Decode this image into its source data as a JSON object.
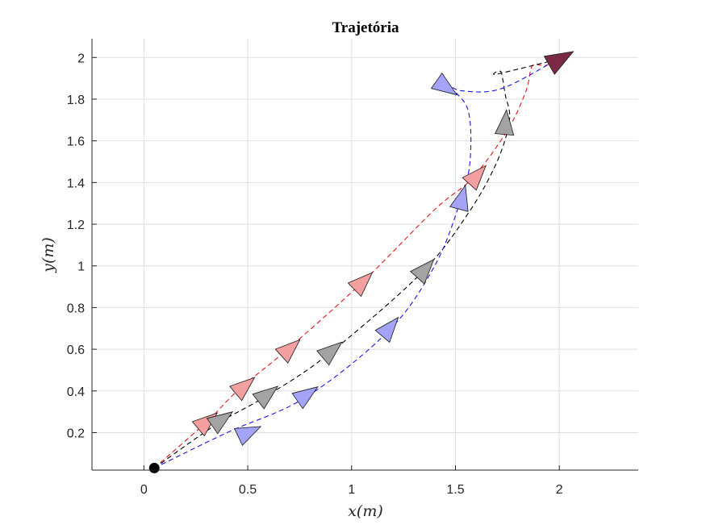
{
  "chart_data": {
    "type": "line",
    "title": "Trajetória",
    "xlabel": "x(m)",
    "ylabel": "y(m)",
    "xlim": [
      -0.25,
      2.38
    ],
    "ylim": [
      0.02,
      2.09
    ],
    "xticks": [
      0,
      0.5,
      1,
      1.5,
      2
    ],
    "xtick_labels": [
      "0",
      "0.5",
      "1",
      "1.5",
      "2"
    ],
    "yticks": [
      0.2,
      0.4,
      0.6,
      0.8,
      1,
      1.2,
      1.4,
      1.6,
      1.8,
      2
    ],
    "ytick_labels": [
      "0.2",
      "0.4",
      "0.6",
      "0.8",
      "1",
      "1.2",
      "1.4",
      "1.6",
      "1.8",
      "2"
    ],
    "grid": true,
    "start_point": {
      "x": 0.05,
      "y": 0.03,
      "color": "#000000"
    },
    "goal_marker": {
      "x": 2.0,
      "y": 1.99,
      "heading_deg": 30,
      "color": "#7a2a47"
    },
    "series": [
      {
        "color": "#e8141f",
        "marker_fill": "#f4a0a0",
        "x": [
          0.05,
          0.3,
          0.46,
          0.68,
          1.05,
          1.4,
          1.58,
          1.75,
          1.84,
          1.87,
          1.93,
          1.99
        ],
        "y": [
          0.03,
          0.25,
          0.41,
          0.59,
          0.92,
          1.27,
          1.42,
          1.65,
          1.84,
          1.96,
          1.96,
          1.99
        ],
        "markers": [
          {
            "x": 0.3,
            "y": 0.25,
            "heading_deg": 40
          },
          {
            "x": 0.48,
            "y": 0.42,
            "heading_deg": 40
          },
          {
            "x": 0.7,
            "y": 0.6,
            "heading_deg": 42
          },
          {
            "x": 1.05,
            "y": 0.92,
            "heading_deg": 44
          },
          {
            "x": 1.6,
            "y": 1.43,
            "heading_deg": 48
          }
        ]
      },
      {
        "color": "#000000",
        "marker_fill": "#a3a3a3",
        "x": [
          0.05,
          0.35,
          0.58,
          0.88,
          1.33,
          1.56,
          1.7,
          1.76,
          1.74,
          1.72,
          1.7,
          1.99
        ],
        "y": [
          0.03,
          0.24,
          0.37,
          0.57,
          0.96,
          1.25,
          1.5,
          1.7,
          1.82,
          1.93,
          1.92,
          1.99
        ],
        "markers": [
          {
            "x": 0.37,
            "y": 0.26,
            "heading_deg": 35
          },
          {
            "x": 0.59,
            "y": 0.38,
            "heading_deg": 38
          },
          {
            "x": 0.9,
            "y": 0.59,
            "heading_deg": 40
          },
          {
            "x": 1.35,
            "y": 0.98,
            "heading_deg": 48
          },
          {
            "x": 1.74,
            "y": 1.68,
            "heading_deg": 85
          }
        ]
      },
      {
        "color": "#1616e8",
        "marker_fill": "#a3a3f7",
        "x": [
          0.05,
          0.4,
          0.78,
          1.18,
          1.4,
          1.52,
          1.57,
          1.56,
          1.46,
          1.53,
          1.72,
          1.99
        ],
        "y": [
          0.03,
          0.2,
          0.37,
          0.69,
          1.0,
          1.3,
          1.5,
          1.75,
          1.87,
          1.84,
          1.85,
          1.99
        ],
        "markers": [
          {
            "x": 0.5,
            "y": 0.2,
            "heading_deg": 25
          },
          {
            "x": 0.78,
            "y": 0.38,
            "heading_deg": 35
          },
          {
            "x": 1.18,
            "y": 0.7,
            "heading_deg": 50
          },
          {
            "x": 1.53,
            "y": 1.32,
            "heading_deg": 75
          },
          {
            "x": 1.45,
            "y": 1.86,
            "heading_deg": -35
          }
        ]
      }
    ]
  }
}
